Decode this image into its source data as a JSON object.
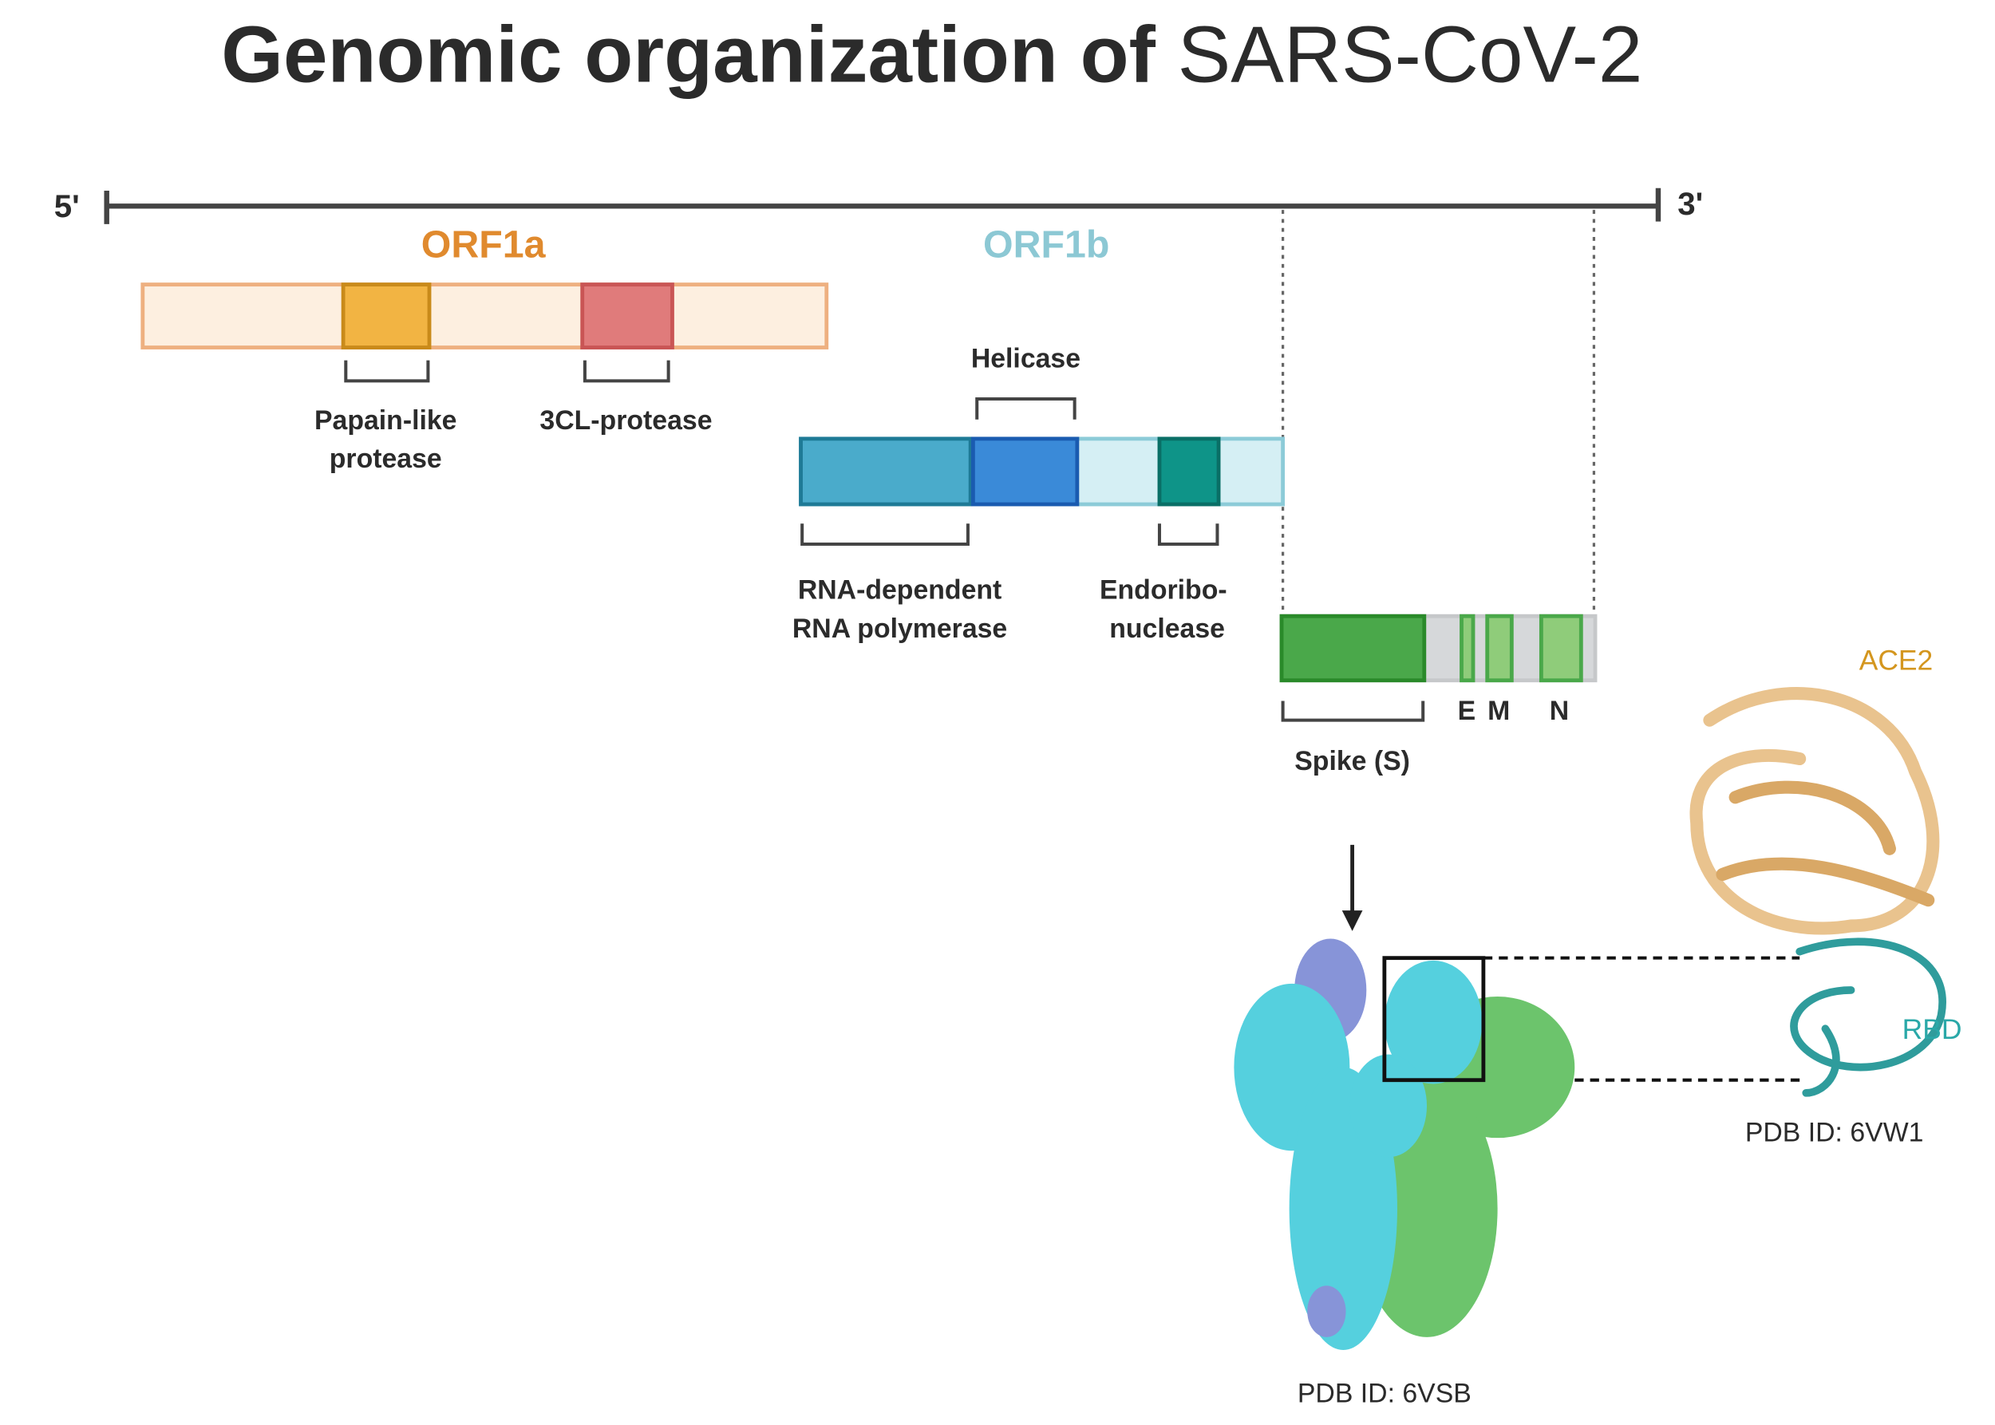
{
  "title": {
    "bold": "Genomic organization of",
    "light": "SARS-CoV-2"
  },
  "genome": {
    "five_prime": "5'",
    "three_prime": "3'"
  },
  "orf1a": {
    "label": "ORF1a",
    "domains": [
      {
        "label_lines": [
          "Papain-like",
          "protease"
        ]
      },
      {
        "label_lines": [
          "3CL-protease"
        ]
      }
    ]
  },
  "orf1b": {
    "label": "ORF1b",
    "domains": [
      {
        "label_lines": [
          "RNA-dependent",
          "RNA polymerase"
        ]
      },
      {
        "label_lines": [
          "Helicase"
        ]
      },
      {
        "label_lines": [
          "Endoribo-",
          "nuclease"
        ]
      }
    ]
  },
  "structural": {
    "genes": [
      "Spike (S)",
      "E",
      "M",
      "N"
    ]
  },
  "structures": {
    "receptor": "ACE2",
    "domain": "RBD",
    "complex_pdb": "PDB ID: 6VW1",
    "spike_pdb": "PDB ID: 6VSB"
  }
}
